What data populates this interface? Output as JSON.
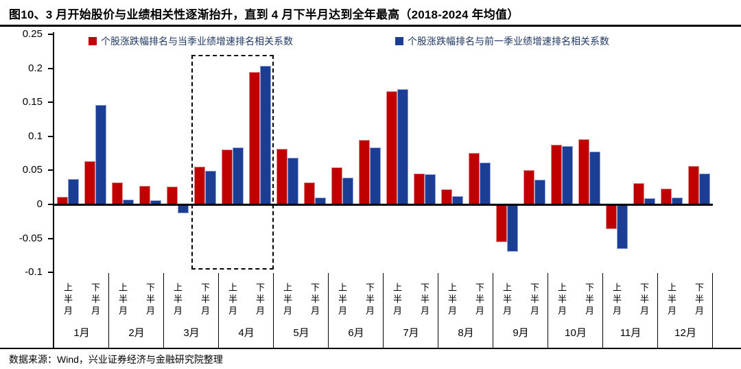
{
  "title": "图10、3 月开始股价与业绩相关性逐渐抬升，直到 4 月下半月达到全年最高（2018-2024 年均值）",
  "footer": "数据来源：Wind，兴业证券经济与金融研究院整理",
  "colors": {
    "series_current_quarter": "#C00000",
    "series_previous_quarter": "#1C3D94",
    "legend_text": "#1F3864",
    "axis": "#000000"
  },
  "chart_data": {
    "type": "bar",
    "title": "3 月开始股价与业绩相关性逐渐抬升，直到 4 月下半月达到全年最高（2018-2024 年均值）",
    "months": [
      "1月",
      "2月",
      "3月",
      "4月",
      "5月",
      "6月",
      "7月",
      "8月",
      "9月",
      "10月",
      "11月",
      "12月"
    ],
    "half_labels": [
      "上半月",
      "下半月"
    ],
    "categories": [
      "1月上半月",
      "1月下半月",
      "2月上半月",
      "2月下半月",
      "3月上半月",
      "3月下半月",
      "4月上半月",
      "4月下半月",
      "5月上半月",
      "5月下半月",
      "6月上半月",
      "6月下半月",
      "7月上半月",
      "7月下半月",
      "8月上半月",
      "8月下半月",
      "9月上半月",
      "9月下半月",
      "10月上半月",
      "10月下半月",
      "11月上半月",
      "11月下半月",
      "12月上半月",
      "12月下半月"
    ],
    "series": [
      {
        "name": "个股涨跌幅排名与当季业绩增速排名相关系数",
        "color": "#C00000",
        "values": [
          0.011,
          0.064,
          0.032,
          0.027,
          0.026,
          0.055,
          0.081,
          0.195,
          0.082,
          0.032,
          0.054,
          0.095,
          0.167,
          0.045,
          0.022,
          0.076,
          -0.054,
          0.05,
          0.088,
          0.096,
          -0.035,
          0.031,
          0.023,
          0.057
        ]
      },
      {
        "name": "个股涨跌幅排名与前一季业绩增速排名相关系数",
        "color": "#1C3D94",
        "values": [
          0.037,
          0.146,
          0.007,
          0.006,
          -0.012,
          0.049,
          0.084,
          0.204,
          0.069,
          0.01,
          0.039,
          0.084,
          0.17,
          0.044,
          0.012,
          0.062,
          -0.069,
          0.036,
          0.086,
          0.078,
          -0.065,
          0.009,
          0.01,
          0.045
        ]
      }
    ],
    "ylim": [
      -0.1,
      0.25
    ],
    "yticks": [
      0.25,
      0.2,
      0.15,
      0.1,
      0.05,
      0,
      -0.05,
      -0.1
    ],
    "ytick_labels": [
      "0.25",
      "0.2",
      "0.15",
      "0.1",
      "0.05",
      "0",
      "-0.05",
      "-0.1"
    ],
    "grid": false,
    "legend_position": "top",
    "annotation": {
      "type": "dashed-box",
      "from": "3月下半月",
      "to": "4月下半月",
      "from_index": 5,
      "to_index": 7
    }
  }
}
